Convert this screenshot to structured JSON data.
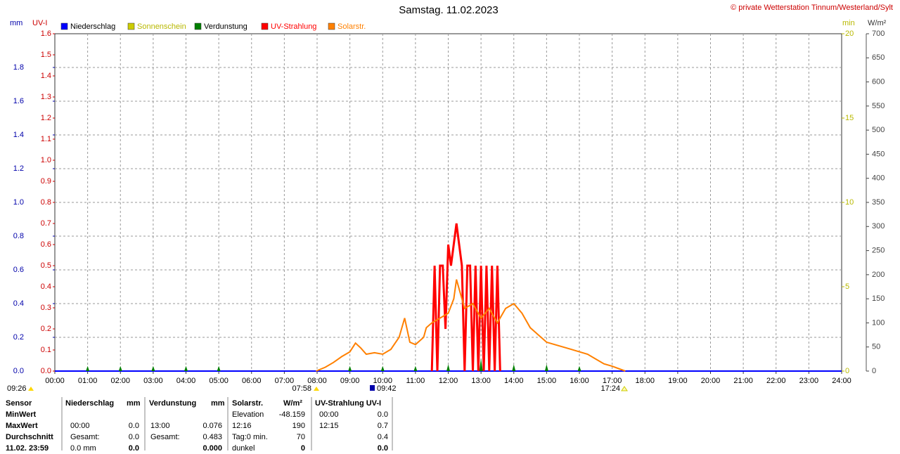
{
  "chart_data": {
    "type": "line",
    "title": "Samstag. 11.02.2023",
    "subtitle": "© private Wetterstation Tinnum/Westerland/Sylt",
    "ylabel": "mm",
    "y2label": "UV-I",
    "y3label": "min",
    "y4label": "W/m²",
    "xlim": [
      0,
      24
    ],
    "xticks": [
      {
        "value": 0,
        "label": "00:00"
      },
      {
        "value": 1,
        "label": "01:00"
      },
      {
        "value": 2,
        "label": "02:00"
      },
      {
        "value": 3,
        "label": "03:00"
      },
      {
        "value": 4,
        "label": "04:00"
      },
      {
        "value": 5,
        "label": "05:00"
      },
      {
        "value": 6,
        "label": "06:00"
      },
      {
        "value": 7,
        "label": "07:00"
      },
      {
        "value": 8,
        "label": "08:00"
      },
      {
        "value": 9,
        "label": "09:00"
      },
      {
        "value": 10,
        "label": "10:00"
      },
      {
        "value": 11,
        "label": "11:00"
      },
      {
        "value": 12,
        "label": "12:00"
      },
      {
        "value": 13,
        "label": "13:00"
      },
      {
        "value": 14,
        "label": "14:00"
      },
      {
        "value": 15,
        "label": "15:00"
      },
      {
        "value": 16,
        "label": "16:00"
      },
      {
        "value": 17,
        "label": "17:00"
      },
      {
        "value": 18,
        "label": "18:00"
      },
      {
        "value": 19,
        "label": "19:00"
      },
      {
        "value": 20,
        "label": "20:00"
      },
      {
        "value": 21,
        "label": "21:00"
      },
      {
        "value": 22,
        "label": "22:00"
      },
      {
        "value": 23,
        "label": "23:00"
      },
      {
        "value": 24,
        "label": "24:00"
      }
    ],
    "ylim": [
      0,
      2.0
    ],
    "yticks": [
      {
        "value": 0,
        "label": "0.0"
      },
      0.2,
      0.4,
      0.6,
      0.8,
      {
        "value": 1,
        "label": "1.0"
      },
      1.2,
      1.4,
      1.6,
      1.8
    ],
    "y2lim": [
      0,
      1.6
    ],
    "y2ticks": [
      {
        "value": 0,
        "label": "0.0"
      },
      0.1,
      0.2,
      0.3,
      0.4,
      0.5,
      0.6,
      0.7,
      0.8,
      0.9,
      {
        "value": 1,
        "label": "1.0"
      },
      1.1,
      1.2,
      1.3,
      1.4,
      1.5,
      1.6
    ],
    "y3lim": [
      0,
      20
    ],
    "y3ticks": [
      0,
      5,
      10,
      15,
      20
    ],
    "y4lim": [
      0,
      700
    ],
    "y4ticks": [
      0,
      50,
      100,
      150,
      200,
      250,
      300,
      350,
      400,
      450,
      500,
      550,
      600,
      650,
      700
    ],
    "grid": true,
    "annotations": [
      "09:26",
      "07:58",
      "09:42",
      "17:24"
    ],
    "series": [
      {
        "name": "Niederschlag",
        "color": "#0000ff",
        "label_color": "#000000",
        "axis": "y",
        "style": "line",
        "x": [
          0,
          24
        ],
        "values": [
          0,
          0
        ]
      },
      {
        "name": "Sonnenschein",
        "color": "#cccc00",
        "label_color": "#b8b800",
        "axis": "y3",
        "style": "line",
        "x": [],
        "values": []
      },
      {
        "name": "Verdunstung",
        "color": "#008000",
        "label_color": "#000000",
        "axis": "y",
        "style": "spike",
        "x": [
          1,
          2,
          3,
          4,
          5,
          9,
          10,
          11,
          12,
          13,
          14,
          15,
          16
        ],
        "values": [
          0.03,
          0.03,
          0.03,
          0.03,
          0.03,
          0.03,
          0.03,
          0.03,
          0.04,
          0.076,
          0.04,
          0.04,
          0.03
        ]
      },
      {
        "name": "UV-Strahlung",
        "color": "#ff0000",
        "label_color": "#ff0000",
        "axis": "y2",
        "style": "line",
        "x": [
          11.5,
          11.583,
          11.667,
          11.75,
          11.833,
          11.917,
          12,
          12.083,
          12.167,
          12.25,
          12.333,
          12.417,
          12.5,
          12.583,
          12.667,
          12.75,
          12.833,
          12.917,
          13,
          13.083,
          13.167,
          13.25,
          13.333,
          13.417,
          13.5,
          13.583
        ],
        "values": [
          0,
          0.5,
          0,
          0.5,
          0.5,
          0.2,
          0.6,
          0.5,
          0.6,
          0.7,
          0.6,
          0.5,
          0,
          0.5,
          0.5,
          0,
          0.5,
          0,
          0.5,
          0,
          0.5,
          0,
          0.5,
          0,
          0.5,
          0
        ]
      },
      {
        "name": "Solarstr.",
        "color": "#ff8000",
        "label_color": "#ff8000",
        "axis": "y4",
        "style": "line",
        "x": [
          7.967,
          8.25,
          8.5,
          8.75,
          9,
          9.17,
          9.33,
          9.5,
          9.75,
          10,
          10.25,
          10.5,
          10.67,
          10.83,
          11,
          11.25,
          11.33,
          11.5,
          11.75,
          12,
          12.17,
          12.25,
          12.5,
          12.75,
          13,
          13.25,
          13.5,
          13.75,
          14,
          14.25,
          14.5,
          14.75,
          15,
          15.25,
          15.5,
          15.75,
          16,
          16.25,
          16.5,
          16.75,
          17,
          17.4
        ],
        "values": [
          0,
          8,
          18,
          30,
          40,
          58,
          48,
          35,
          38,
          35,
          45,
          70,
          110,
          60,
          55,
          70,
          90,
          100,
          110,
          120,
          150,
          190,
          130,
          140,
          110,
          130,
          100,
          130,
          140,
          120,
          90,
          75,
          60,
          55,
          50,
          45,
          40,
          35,
          25,
          15,
          10,
          0
        ]
      }
    ]
  },
  "stats": {
    "header": {
      "label": "Sensor",
      "rain": "Niederschlag",
      "rain_unit": "mm",
      "evap": "Verdunstung",
      "evap_unit": "mm",
      "solar": "Solarstr.",
      "solar_unit": "W/m²",
      "uv": "UV-Strahlung UV-I"
    },
    "rows": [
      {
        "label": "MinWert",
        "solar_label": "Elevation",
        "solar_value": "-48.159",
        "uv_time": "00:00",
        "uv_value": "0.0"
      },
      {
        "label": "MaxWert",
        "rain_time": "00:00",
        "rain_value": "0.0",
        "evap_time": "13:00",
        "evap_value": "0.076",
        "solar_label": "12:16",
        "solar_value": "190",
        "uv_time": "12:15",
        "uv_value": "0.7"
      },
      {
        "label": "Durchschnitt",
        "rain_time": "Gesamt:",
        "rain_value": "0.0",
        "evap_time": "Gesamt:",
        "evap_value": "0.483",
        "solar_label": "Tag:0 min.",
        "solar_value": "70",
        "uv_value": "0.4"
      },
      {
        "label": "11.02. 23:59",
        "rain_time": "0.0 mm",
        "rain_value": "0.0",
        "evap_value": "0.000",
        "solar_label": "dunkel",
        "solar_value": "0",
        "uv_value": "0.0"
      }
    ]
  }
}
